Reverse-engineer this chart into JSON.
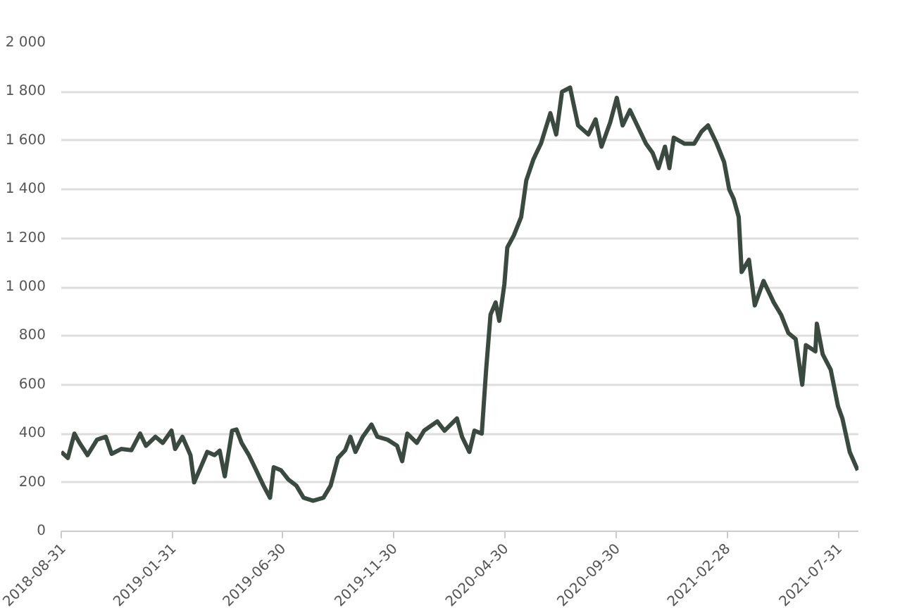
{
  "chart_data": {
    "type": "line",
    "x": [
      "2018-08-31",
      "2018-09-09",
      "2018-09-18",
      "2018-09-25",
      "2018-10-06",
      "2018-10-19",
      "2018-10-31",
      "2018-11-08",
      "2018-11-21",
      "2018-12-05",
      "2018-12-17",
      "2018-12-25",
      "2019-01-07",
      "2019-01-17",
      "2019-01-29",
      "2019-02-03",
      "2019-02-13",
      "2019-02-24",
      "2019-03-01",
      "2019-03-10",
      "2019-03-19",
      "2019-03-29",
      "2019-04-05",
      "2019-04-12",
      "2019-04-22",
      "2019-04-28",
      "2019-05-05",
      "2019-05-15",
      "2019-05-25",
      "2019-06-04",
      "2019-06-13",
      "2019-06-18",
      "2019-06-28",
      "2019-07-08",
      "2019-07-19",
      "2019-07-29",
      "2019-08-11",
      "2019-08-25",
      "2019-09-04",
      "2019-09-14",
      "2019-09-24",
      "2019-10-01",
      "2019-10-08",
      "2019-10-18",
      "2019-10-30",
      "2019-11-07",
      "2019-11-21",
      "2019-12-04",
      "2019-12-11",
      "2019-12-18",
      "2019-12-31",
      "2020-01-10",
      "2020-01-28",
      "2020-02-07",
      "2020-02-24",
      "2020-03-02",
      "2020-03-12",
      "2020-03-19",
      "2020-03-29",
      "2020-04-04",
      "2020-04-10",
      "2020-04-17",
      "2020-04-22",
      "2020-04-29",
      "2020-05-03",
      "2020-05-12",
      "2020-05-22",
      "2020-05-29",
      "2020-06-08",
      "2020-06-18",
      "2020-07-01",
      "2020-07-09",
      "2020-07-17",
      "2020-07-28",
      "2020-08-08",
      "2020-08-22",
      "2020-09-01",
      "2020-09-09",
      "2020-09-21",
      "2020-09-30",
      "2020-10-08",
      "2020-10-18",
      "2020-10-28",
      "2020-11-09",
      "2020-11-18",
      "2020-11-26",
      "2020-12-05",
      "2020-12-11",
      "2020-12-17",
      "2021-01-01",
      "2021-01-14",
      "2021-01-24",
      "2021-02-02",
      "2021-02-14",
      "2021-02-24",
      "2021-03-03",
      "2021-03-09",
      "2021-03-16",
      "2021-03-20",
      "2021-03-30",
      "2021-04-07",
      "2021-04-19",
      "2021-05-03",
      "2021-05-13",
      "2021-05-23",
      "2021-06-02",
      "2021-06-11",
      "2021-06-16",
      "2021-06-29",
      "2021-07-01",
      "2021-07-09",
      "2021-07-20",
      "2021-07-30",
      "2021-08-05",
      "2021-08-15",
      "2021-08-26"
    ],
    "series": [
      {
        "color": "#3a4a40",
        "values": [
          325,
          300,
          400,
          362,
          312,
          375,
          387,
          317,
          337,
          332,
          400,
          350,
          387,
          362,
          412,
          337,
          387,
          312,
          200,
          262,
          325,
          312,
          330,
          225,
          412,
          417,
          362,
          312,
          250,
          187,
          137,
          262,
          250,
          212,
          187,
          137,
          125,
          137,
          187,
          300,
          332,
          387,
          325,
          387,
          437,
          387,
          375,
          350,
          287,
          400,
          362,
          412,
          450,
          412,
          462,
          387,
          325,
          412,
          400,
          662,
          887,
          937,
          862,
          1012,
          1162,
          1212,
          1287,
          1437,
          1525,
          1587,
          1712,
          1625,
          1800,
          1817,
          1662,
          1625,
          1687,
          1575,
          1675,
          1775,
          1662,
          1725,
          1662,
          1587,
          1550,
          1487,
          1575,
          1487,
          1612,
          1587,
          1587,
          1637,
          1662,
          1587,
          1512,
          1400,
          1362,
          1287,
          1062,
          1112,
          925,
          1025,
          937,
          887,
          812,
          787,
          600,
          762,
          737,
          850,
          725,
          662,
          512,
          462,
          325,
          250
        ]
      }
    ],
    "xlim": [
      "2018-08-31",
      "2021-08-27"
    ],
    "xticks": [
      "2018-08-31",
      "2019-01-31",
      "2019-06-30",
      "2019-11-30",
      "2020-04-30",
      "2020-09-30",
      "2021-02-28",
      "2021-07-31"
    ],
    "ylim": [
      0,
      2000
    ],
    "yticks": [
      0,
      200,
      400,
      600,
      800,
      {
        "value": 1000,
        "label": "1 000"
      },
      {
        "value": 1200,
        "label": "1 200"
      },
      {
        "value": 1400,
        "label": "1 400"
      },
      {
        "value": 1600,
        "label": "1 600"
      },
      {
        "value": 1800,
        "label": "1 800"
      },
      {
        "value": 2000,
        "label": "2 000"
      }
    ],
    "grid": "y",
    "line_style": "solid",
    "marker": "none"
  }
}
